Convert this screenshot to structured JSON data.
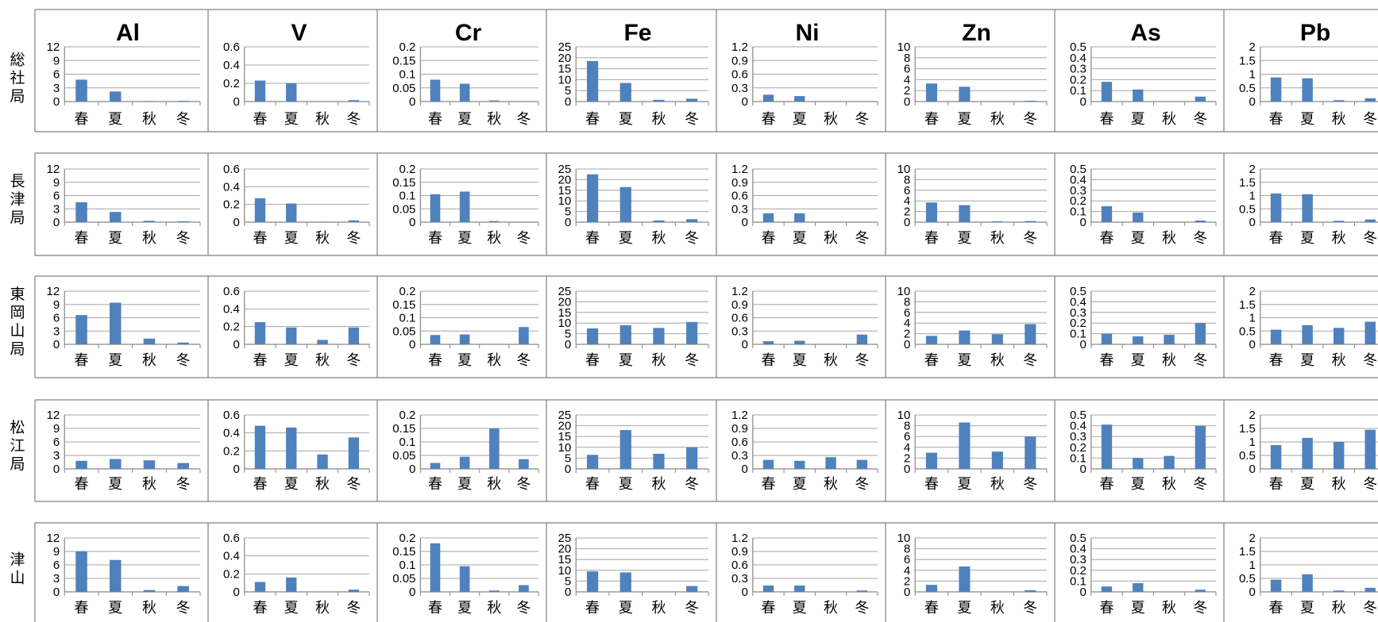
{
  "figure": {
    "elements": [
      "Al",
      "V",
      "Cr",
      "Fe",
      "Ni",
      "Zn",
      "As",
      "Pb"
    ],
    "stations": [
      "総社局",
      "長津局",
      "東岡山局",
      "松江局",
      "津山"
    ]
  },
  "chart_data": {
    "type": "bar",
    "layout": "small-multiples grid: rows = stations, columns = elements",
    "categories": [
      "春",
      "夏",
      "秋",
      "冬"
    ],
    "grid": true,
    "legend": "none",
    "panels": [
      {
        "element": "Al",
        "ylim": [
          0,
          12
        ],
        "yticks": [
          "0",
          "3",
          "6",
          "9",
          "12"
        ],
        "values": {
          "総社局": [
            4.8,
            2.2,
            0.1,
            0.15
          ],
          "長津局": [
            4.5,
            2.3,
            0.3,
            0.2
          ],
          "東岡山局": [
            6.6,
            9.4,
            1.3,
            0.4
          ],
          "松江局": [
            1.8,
            2.2,
            1.9,
            1.3
          ],
          "津山": [
            9.0,
            7.1,
            0.4,
            1.3
          ]
        }
      },
      {
        "element": "V",
        "ylim": [
          0,
          0.6
        ],
        "yticks": [
          "0",
          "0.2",
          "0.4",
          "0.6"
        ],
        "values": {
          "総社局": [
            0.23,
            0.2,
            0.0,
            0.015
          ],
          "長津局": [
            0.27,
            0.21,
            0.005,
            0.02
          ],
          "東岡山局": [
            0.25,
            0.19,
            0.05,
            0.19
          ],
          "松江局": [
            0.48,
            0.46,
            0.16,
            0.35
          ],
          "津山": [
            0.11,
            0.16,
            0.0,
            0.025
          ]
        }
      },
      {
        "element": "Cr",
        "ylim": [
          0,
          0.2
        ],
        "yticks": [
          "0",
          "0.05",
          "0.1",
          "0.15",
          "0.2"
        ],
        "values": {
          "総社局": [
            0.08,
            0.065,
            0.004,
            0.0
          ],
          "長津局": [
            0.105,
            0.115,
            0.004,
            0.0
          ],
          "東岡山局": [
            0.035,
            0.037,
            0.0,
            0.065
          ],
          "松江局": [
            0.022,
            0.045,
            0.15,
            0.036
          ],
          "津山": [
            0.18,
            0.095,
            0.005,
            0.025
          ]
        }
      },
      {
        "element": "Fe",
        "ylim": [
          0,
          25
        ],
        "yticks": [
          "0",
          "5",
          "10",
          "15",
          "20",
          "25"
        ],
        "values": {
          "総社局": [
            18.5,
            8.5,
            0.8,
            1.3
          ],
          "長津局": [
            22.5,
            16.5,
            0.8,
            1.4
          ],
          "東岡山局": [
            7.5,
            9.0,
            7.7,
            10.5
          ],
          "松江局": [
            6.5,
            18.0,
            7.0,
            10.0
          ],
          "津山": [
            9.5,
            9.0,
            0.0,
            2.7
          ]
        }
      },
      {
        "element": "Ni",
        "ylim": [
          0,
          1.2
        ],
        "yticks": [
          "0",
          "0.3",
          "0.6",
          "0.9",
          "1.2"
        ],
        "values": {
          "総社局": [
            0.15,
            0.12,
            0.0,
            0.0
          ],
          "長津局": [
            0.2,
            0.2,
            0.0,
            0.0
          ],
          "東岡山局": [
            0.07,
            0.08,
            0.0,
            0.22
          ],
          "松江局": [
            0.2,
            0.18,
            0.26,
            0.2
          ],
          "津山": [
            0.14,
            0.14,
            0.0,
            0.03
          ]
        }
      },
      {
        "element": "Zn",
        "ylim": [
          0,
          10
        ],
        "yticks": [
          "0",
          "2",
          "4",
          "6",
          "8",
          "10"
        ],
        "values": {
          "総社局": [
            3.3,
            2.7,
            0.0,
            0.15
          ],
          "長津局": [
            3.7,
            3.2,
            0.15,
            0.2
          ],
          "東岡山局": [
            1.6,
            2.6,
            1.9,
            3.8
          ],
          "松江局": [
            3.0,
            8.6,
            3.2,
            6.0
          ],
          "津山": [
            1.3,
            4.7,
            0.0,
            0.3
          ]
        }
      },
      {
        "element": "As",
        "ylim": [
          0,
          0.5
        ],
        "yticks": [
          "0",
          "0.1",
          "0.2",
          "0.3",
          "0.4",
          "0.5"
        ],
        "values": {
          "総社局": [
            0.18,
            0.11,
            0.0,
            0.045
          ],
          "長津局": [
            0.15,
            0.09,
            0.0,
            0.015
          ],
          "東岡山局": [
            0.1,
            0.075,
            0.09,
            0.2
          ],
          "松江局": [
            0.41,
            0.1,
            0.12,
            0.4
          ],
          "津山": [
            0.05,
            0.08,
            0.0,
            0.02
          ]
        }
      },
      {
        "element": "Pb",
        "ylim": [
          0,
          2
        ],
        "yticks": [
          "0",
          "0.5",
          "1",
          "1.5",
          "2"
        ],
        "values": {
          "総社局": [
            0.88,
            0.85,
            0.05,
            0.12
          ],
          "長津局": [
            1.08,
            1.05,
            0.05,
            0.1
          ],
          "東岡山局": [
            0.55,
            0.72,
            0.62,
            0.85
          ],
          "松江局": [
            0.88,
            1.15,
            1.0,
            1.45
          ],
          "津山": [
            0.45,
            0.65,
            0.05,
            0.15
          ]
        }
      }
    ]
  },
  "colors": {
    "bar": "#4f81bd",
    "grid": "#a6a6a6",
    "frame": "#808080",
    "axis": "#868686"
  }
}
